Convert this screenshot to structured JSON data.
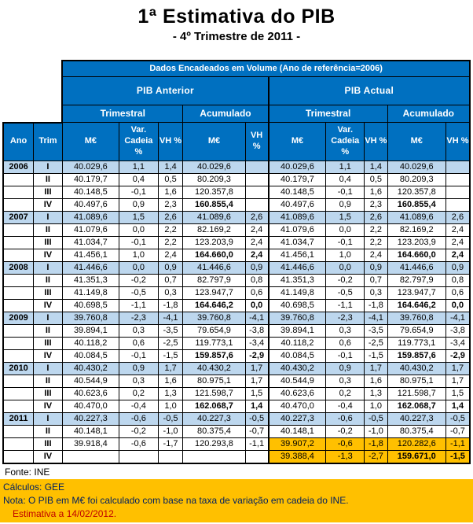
{
  "page": {
    "title": "1ª Estimativa do PIB",
    "subtitle": "- 4º Trimestre de 2011 -"
  },
  "table": {
    "top_header": "Dados Encadeados em Volume (Ano de referência=2006)",
    "groups": [
      "PIB Anterior",
      "PIB  Actual"
    ],
    "subgroups": [
      "Trimestral",
      "Acumulado",
      "Trimestral",
      "Acumulado"
    ],
    "columns": [
      "Ano",
      "Trim",
      "M€",
      "Var. Cadeia %",
      "VH %",
      "M€",
      "VH %",
      "M€",
      "Var. Cadeia %",
      "VH %",
      "M€",
      "VH %"
    ],
    "rows": [
      {
        "ano": "2006",
        "trim": "I",
        "revised": false,
        "cells": [
          "40.029,6",
          "1,1",
          "1,4",
          "40.029,6",
          "",
          "40.029,6",
          "1,1",
          "1,4",
          "40.029,6",
          ""
        ]
      },
      {
        "ano": "",
        "trim": "II",
        "revised": false,
        "cells": [
          "40.179,7",
          "0,4",
          "0,5",
          "80.209,3",
          "",
          "40.179,7",
          "0,4",
          "0,5",
          "80.209,3",
          ""
        ]
      },
      {
        "ano": "",
        "trim": "III",
        "revised": false,
        "cells": [
          "40.148,5",
          "-0,1",
          "1,6",
          "120.357,8",
          "",
          "40.148,5",
          "-0,1",
          "1,6",
          "120.357,8",
          ""
        ]
      },
      {
        "ano": "",
        "trim": "IV",
        "revised": false,
        "cells": [
          "40.497,6",
          "0,9",
          "2,3",
          "160.855,4",
          "",
          "40.497,6",
          "0,9",
          "2,3",
          "160.855,4",
          ""
        ]
      },
      {
        "ano": "2007",
        "trim": "I",
        "revised": false,
        "cells": [
          "41.089,6",
          "1,5",
          "2,6",
          "41.089,6",
          "2,6",
          "41.089,6",
          "1,5",
          "2,6",
          "41.089,6",
          "2,6"
        ]
      },
      {
        "ano": "",
        "trim": "II",
        "revised": false,
        "cells": [
          "41.079,6",
          "0,0",
          "2,2",
          "82.169,2",
          "2,4",
          "41.079,6",
          "0,0",
          "2,2",
          "82.169,2",
          "2,4"
        ]
      },
      {
        "ano": "",
        "trim": "III",
        "revised": false,
        "cells": [
          "41.034,7",
          "-0,1",
          "2,2",
          "123.203,9",
          "2,4",
          "41.034,7",
          "-0,1",
          "2,2",
          "123.203,9",
          "2,4"
        ]
      },
      {
        "ano": "",
        "trim": "IV",
        "revised": false,
        "cells": [
          "41.456,1",
          "1,0",
          "2,4",
          "164.660,0",
          "2,4",
          "41.456,1",
          "1,0",
          "2,4",
          "164.660,0",
          "2,4"
        ]
      },
      {
        "ano": "2008",
        "trim": "I",
        "revised": false,
        "cells": [
          "41.446,6",
          "0,0",
          "0,9",
          "41.446,6",
          "0,9",
          "41.446,6",
          "0,0",
          "0,9",
          "41.446,6",
          "0,9"
        ]
      },
      {
        "ano": "",
        "trim": "II",
        "revised": false,
        "cells": [
          "41.351,3",
          "-0,2",
          "0,7",
          "82.797,9",
          "0,8",
          "41.351,3",
          "-0,2",
          "0,7",
          "82.797,9",
          "0,8"
        ]
      },
      {
        "ano": "",
        "trim": "III",
        "revised": false,
        "cells": [
          "41.149,8",
          "-0,5",
          "0,3",
          "123.947,7",
          "0,6",
          "41.149,8",
          "-0,5",
          "0,3",
          "123.947,7",
          "0,6"
        ]
      },
      {
        "ano": "",
        "trim": "IV",
        "revised": false,
        "cells": [
          "40.698,5",
          "-1,1",
          "-1,8",
          "164.646,2",
          "0,0",
          "40.698,5",
          "-1,1",
          "-1,8",
          "164.646,2",
          "0,0"
        ]
      },
      {
        "ano": "2009",
        "trim": "I",
        "revised": false,
        "cells": [
          "39.760,8",
          "-2,3",
          "-4,1",
          "39.760,8",
          "-4,1",
          "39.760,8",
          "-2,3",
          "-4,1",
          "39.760,8",
          "-4,1"
        ]
      },
      {
        "ano": "",
        "trim": "II",
        "revised": false,
        "cells": [
          "39.894,1",
          "0,3",
          "-3,5",
          "79.654,9",
          "-3,8",
          "39.894,1",
          "0,3",
          "-3,5",
          "79.654,9",
          "-3,8"
        ]
      },
      {
        "ano": "",
        "trim": "III",
        "revised": false,
        "cells": [
          "40.118,2",
          "0,6",
          "-2,5",
          "119.773,1",
          "-3,4",
          "40.118,2",
          "0,6",
          "-2,5",
          "119.773,1",
          "-3,4"
        ]
      },
      {
        "ano": "",
        "trim": "IV",
        "revised": false,
        "cells": [
          "40.084,5",
          "-0,1",
          "-1,5",
          "159.857,6",
          "-2,9",
          "40.084,5",
          "-0,1",
          "-1,5",
          "159.857,6",
          "-2,9"
        ]
      },
      {
        "ano": "2010",
        "trim": "I",
        "revised": false,
        "cells": [
          "40.430,2",
          "0,9",
          "1,7",
          "40.430,2",
          "1,7",
          "40.430,2",
          "0,9",
          "1,7",
          "40.430,2",
          "1,7"
        ]
      },
      {
        "ano": "",
        "trim": "II",
        "revised": false,
        "cells": [
          "40.544,9",
          "0,3",
          "1,6",
          "80.975,1",
          "1,7",
          "40.544,9",
          "0,3",
          "1,6",
          "80.975,1",
          "1,7"
        ]
      },
      {
        "ano": "",
        "trim": "III",
        "revised": false,
        "cells": [
          "40.623,6",
          "0,2",
          "1,3",
          "121.598,7",
          "1,5",
          "40.623,6",
          "0,2",
          "1,3",
          "121.598,7",
          "1,5"
        ]
      },
      {
        "ano": "",
        "trim": "IV",
        "revised": false,
        "cells": [
          "40.470,0",
          "-0,4",
          "1,0",
          "162.068,7",
          "1,4",
          "40.470,0",
          "-0,4",
          "1,0",
          "162.068,7",
          "1,4"
        ]
      },
      {
        "ano": "2011",
        "trim": "I",
        "revised": false,
        "cells": [
          "40.227,3",
          "-0,6",
          "-0,5",
          "40.227,3",
          "-0,5",
          "40.227,3",
          "-0,6",
          "-0,5",
          "40.227,3",
          "-0,5"
        ]
      },
      {
        "ano": "",
        "trim": "II",
        "revised": false,
        "cells": [
          "40.148,1",
          "-0,2",
          "-1,0",
          "80.375,4",
          "-0,7",
          "40.148,1",
          "-0,2",
          "-1,0",
          "80.375,4",
          "-0,7"
        ]
      },
      {
        "ano": "",
        "trim": "III",
        "revised": true,
        "cells": [
          "39.918,4",
          "-0,6",
          "-1,7",
          "120.293,8",
          "-1,1",
          "39.907,2",
          "-0,6",
          "-1,8",
          "120.282,6",
          "-1,1"
        ]
      },
      {
        "ano": "",
        "trim": "IV",
        "revised": true,
        "cells": [
          "",
          "",
          "",
          "",
          "",
          "39.388,4",
          "-1,3",
          "-2,7",
          "159.671,0",
          "-1,5"
        ]
      }
    ]
  },
  "footer": {
    "fonte": "Fonte: INE",
    "calculos": "Cálculos: GEE",
    "nota": "Nota: O PIB em M€ foi calculado com base na taxa de variação em cadeia do INE.",
    "estimativa": "Estimativa a 14/02/2012."
  },
  "colors": {
    "header_blue": "#0070C0",
    "row_blue": "#BDD7EE",
    "highlight_orange": "#FFC000",
    "note_blue": "#002060",
    "estimativa_red": "#C00000"
  }
}
